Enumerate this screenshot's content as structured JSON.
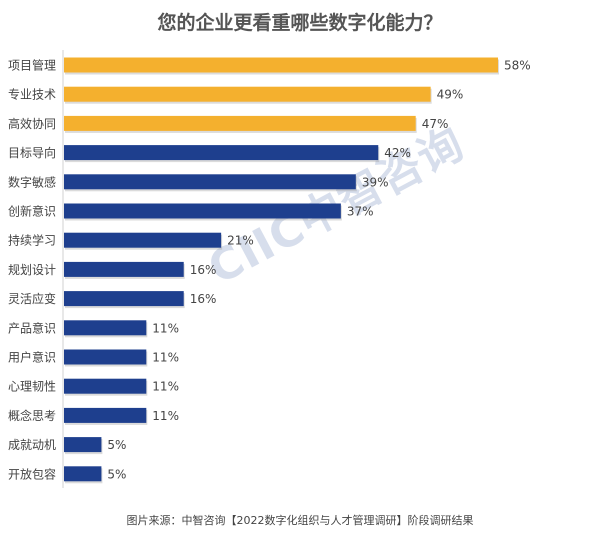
{
  "chart_data": {
    "type": "bar",
    "orientation": "horizontal",
    "title": "您的企业更看重哪些数字化能力？",
    "categories": [
      "项目管理",
      "专业技术",
      "高效协同",
      "目标导向",
      "数字敏感",
      "创新意识",
      "持续学习",
      "规划设计",
      "灵活应变",
      "产品意识",
      "用户意识",
      "心理韧性",
      "概念思考",
      "成就动机",
      "开放包容"
    ],
    "values": [
      58,
      49,
      47,
      42,
      39,
      37,
      21,
      16,
      16,
      11,
      11,
      11,
      11,
      5,
      5
    ],
    "value_suffix": "%",
    "highlight_count": 3,
    "xlim": [
      0,
      100
    ],
    "grid": false,
    "xlabel": "",
    "ylabel": ""
  },
  "colors": {
    "highlight": "#F4B02E",
    "default": "#1E3F8E",
    "label": "#444444"
  },
  "watermark": "CIIC中智咨询",
  "source": "图片来源：中智咨询【2022数字化组织与人才管理调研】阶段调研结果"
}
